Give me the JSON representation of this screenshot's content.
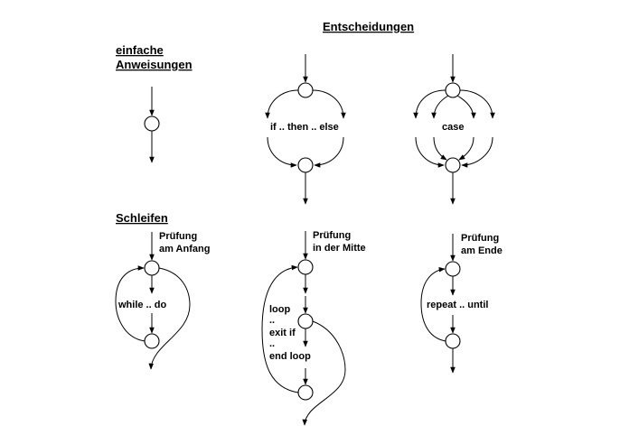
{
  "headers": {
    "decisions": "Entscheidungen",
    "simple_line1": "einfache",
    "simple_line2": "Anweisungen",
    "loops": "Schleifen"
  },
  "decision_labels": {
    "if_then_else": "if .. then .. else",
    "case": "case"
  },
  "loop_labels": {
    "while_check_line1": "Prüfung",
    "while_check_line2": "am Anfang",
    "while_do": "while .. do",
    "mid_check_line1": "Prüfung",
    "mid_check_line2": "in der Mitte",
    "loop_kw": "loop",
    "dots1": "..",
    "exit_if": "exit if",
    "dots2": "..",
    "end_loop": "end loop",
    "end_check_line1": "Prüfung",
    "end_check_line2": "am Ende",
    "repeat_until": "repeat .. until"
  }
}
